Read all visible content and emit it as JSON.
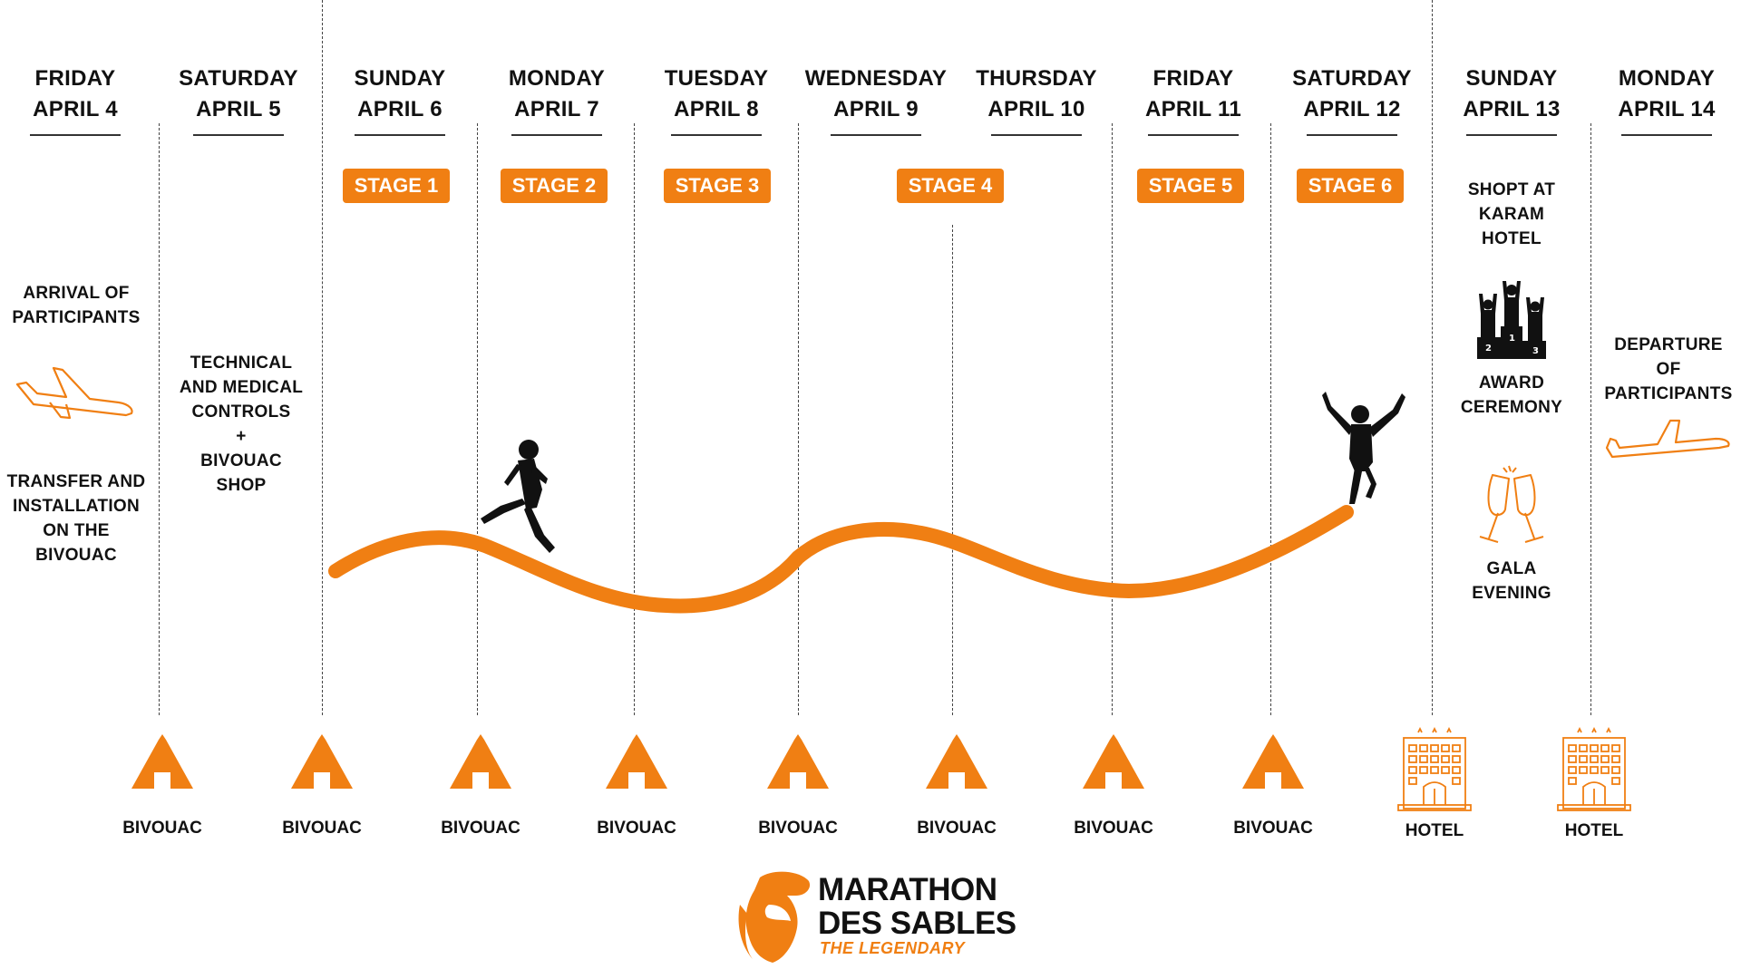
{
  "days": [
    {
      "name": "FRIDAY",
      "date": "APRIL 4"
    },
    {
      "name": "SATURDAY",
      "date": "APRIL 5"
    },
    {
      "name": "SUNDAY",
      "date": "APRIL 6"
    },
    {
      "name": "MONDAY",
      "date": "APRIL 7"
    },
    {
      "name": "TUESDAY",
      "date": "APRIL 8"
    },
    {
      "name": "WEDNESDAY",
      "date": "APRIL 9"
    },
    {
      "name": "THURSDAY",
      "date": "APRIL 10"
    },
    {
      "name": "FRIDAY",
      "date": "APRIL 11"
    },
    {
      "name": "SATURDAY",
      "date": "APRIL 12"
    },
    {
      "name": "SUNDAY",
      "date": "APRIL 13"
    },
    {
      "name": "MONDAY",
      "date": "APRIL 14"
    }
  ],
  "stages": [
    "STAGE 1",
    "STAGE 2",
    "STAGE 3",
    "STAGE 4",
    "STAGE 5",
    "STAGE 6"
  ],
  "events": {
    "arrival": [
      "ARRIVAL OF",
      "PARTICIPANTS"
    ],
    "transfer": [
      "TRANSFER AND",
      "INSTALLATION",
      "ON THE",
      "BIVOUAC"
    ],
    "technical": [
      "TECHNICAL",
      "AND MEDICAL",
      "CONTROLS",
      "+",
      "BIVOUAC",
      "SHOP"
    ],
    "shop": [
      "SHOPT AT",
      "KARAM",
      "HOTEL"
    ],
    "award": [
      "AWARD",
      "CEREMONY"
    ],
    "gala": [
      "GALA",
      "EVENING"
    ],
    "departure": [
      "DEPARTURE",
      "OF",
      "PARTICIPANTS"
    ]
  },
  "lodging": [
    "BIVOUAC",
    "BIVOUAC",
    "BIVOUAC",
    "BIVOUAC",
    "BIVOUAC",
    "BIVOUAC",
    "BIVOUAC",
    "BIVOUAC",
    "HOTEL",
    "HOTEL"
  ],
  "logo": {
    "line1": "MARATHON",
    "line2": "DES SABLES",
    "tagline": "THE LEGENDARY"
  },
  "colors": {
    "accent": "#f07f13",
    "text": "#111111"
  }
}
